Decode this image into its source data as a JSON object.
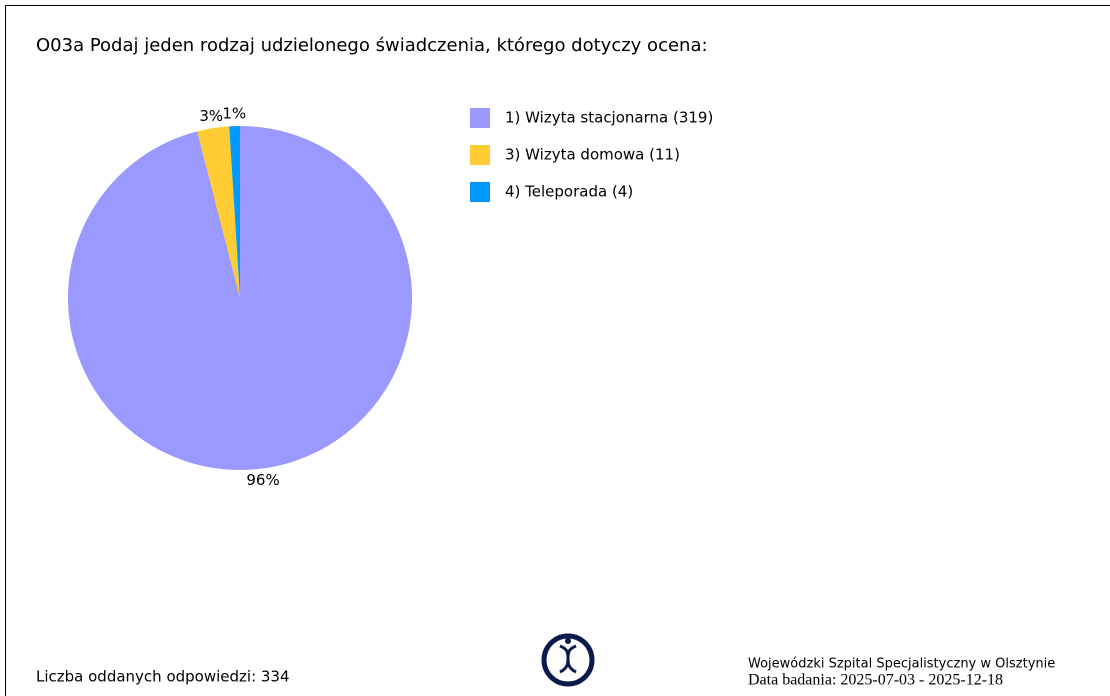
{
  "chart_data": {
    "type": "pie",
    "title": "O03a Podaj jeden rodzaj udzielonego świadczenia, którego dotyczy ocena:",
    "categories": [
      "1) Wizyta stacjonarna (319)",
      "3) Wizyta domowa (11)",
      "4) Teleporada (4)"
    ],
    "values": [
      96,
      3,
      1
    ],
    "value_labels": [
      "96%",
      "3%",
      "1%"
    ],
    "colors": [
      "#9999ff",
      "#ffcc33",
      "#0099ff"
    ],
    "legend": "right"
  },
  "footer": {
    "responses": "Liczba oddanych odpowiedzi: 334",
    "hospital": "Wojewódzki Szpital Specjalistyczny w Olsztynie",
    "date": "Data badania: 2025-07-03 - 2025-12-18"
  }
}
